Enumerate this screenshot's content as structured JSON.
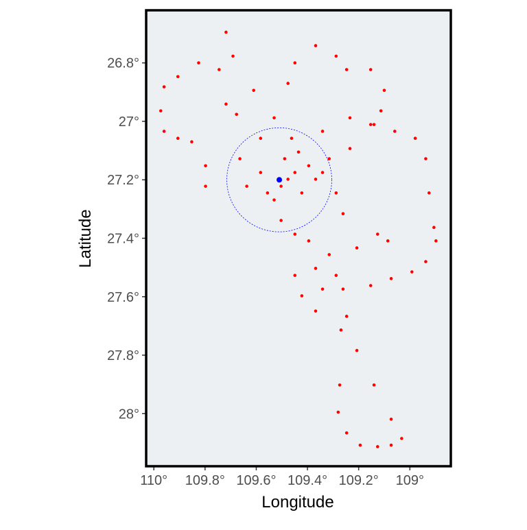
{
  "chart_data": {
    "type": "scatter",
    "x_label": "Longitude",
    "y_label": "Latitude",
    "xlim": [
      110.03,
      108.84
    ],
    "ylim": [
      26.62,
      28.18
    ],
    "xticks": [
      {
        "value": 110,
        "label": "110°"
      },
      {
        "value": 109.8,
        "label": "109.8°"
      },
      {
        "value": 109.6,
        "label": "109.6°"
      },
      {
        "value": 109.4,
        "label": "109.4°"
      },
      {
        "value": 109.2,
        "label": "109.2°"
      },
      {
        "value": 109,
        "label": "109°"
      }
    ],
    "yticks": [
      {
        "value": 26.8,
        "label": "26.8°"
      },
      {
        "value": 27,
        "label": "27°"
      },
      {
        "value": 27.2,
        "label": "27.2°"
      },
      {
        "value": 27.4,
        "label": "27.4°"
      },
      {
        "value": 27.6,
        "label": "27.6°"
      },
      {
        "value": 27.8,
        "label": "27.8°"
      },
      {
        "value": 28,
        "label": "28°"
      }
    ],
    "background": "#ecf0f2",
    "series": [
      {
        "color": "#ff0000",
        "x": [
          109.261,
          109.269,
          109.274,
          109.28,
          109.247,
          109.194,
          109.126,
          109.073,
          109.032,
          109.073,
          109.14,
          109.207,
          109.247,
          109.341,
          109.234,
          109.14,
          109.059,
          108.979,
          108.938,
          108.925,
          108.906,
          108.898,
          108.938,
          108.992,
          109.073,
          109.153,
          109.476,
          109.449,
          109.368,
          109.288,
          109.247,
          109.153,
          109.1,
          109.113,
          109.153,
          109.234,
          109.315,
          109.718,
          109.691,
          109.745,
          109.825,
          109.906,
          109.96,
          109.973,
          109.96,
          109.906,
          109.852,
          109.798,
          109.798,
          109.718,
          109.61,
          109.53,
          109.583,
          109.664,
          109.677,
          109.476,
          109.449,
          109.503,
          109.422,
          109.53,
          109.583,
          109.395,
          109.462,
          109.435,
          109.368,
          109.341,
          109.489,
          109.556,
          109.503,
          109.449,
          109.637,
          109.395,
          109.315,
          109.207,
          109.126,
          109.086,
          109.261,
          109.288,
          109.449,
          109.422,
          109.368,
          109.341,
          109.368,
          109.288
        ],
        "y": [
          27.574,
          27.714,
          27.902,
          27.995,
          28.066,
          28.108,
          28.113,
          28.108,
          28.085,
          28.019,
          27.902,
          27.784,
          27.667,
          27.034,
          26.988,
          27.011,
          27.034,
          27.058,
          27.128,
          27.245,
          27.363,
          27.409,
          27.48,
          27.515,
          27.538,
          27.562,
          26.87,
          26.8,
          26.741,
          26.777,
          26.823,
          26.823,
          26.894,
          26.964,
          27.011,
          27.093,
          27.128,
          26.695,
          26.777,
          26.823,
          26.8,
          26.847,
          26.882,
          26.964,
          27.034,
          27.058,
          27.07,
          27.152,
          27.222,
          26.941,
          26.894,
          26.988,
          27.058,
          27.128,
          26.976,
          27.198,
          27.175,
          27.222,
          27.245,
          27.269,
          27.175,
          27.152,
          27.058,
          27.105,
          27.198,
          27.175,
          27.128,
          27.245,
          27.339,
          27.386,
          27.222,
          27.409,
          27.456,
          27.433,
          27.386,
          27.409,
          27.316,
          27.245,
          27.527,
          27.597,
          27.649,
          27.574,
          27.503,
          27.527
        ]
      }
    ],
    "center": {
      "x": 109.51,
      "y": 27.2,
      "color": "#0000ff",
      "radius_x": 0.205,
      "radius_y": 0.178
    }
  }
}
